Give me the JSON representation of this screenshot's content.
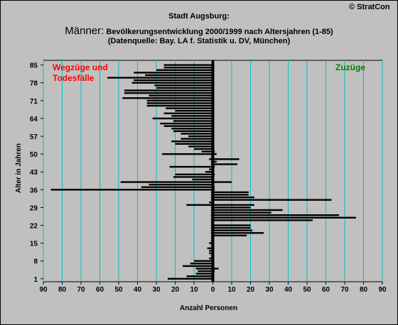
{
  "header": {
    "copyright": "© StratCon",
    "title": "Stadt Augsburg:",
    "subtitle_big": "Männer:",
    "subtitle_rest": " Bevölkerungsentwicklung  2000/1999  nach Altersjahren (1-85)",
    "subtitle2": "(Datenquelle: Bay. LA f. Statistik u. DV, München)"
  },
  "colors": {
    "background": "#c0c0c0",
    "grid": "#00c0c0",
    "bar": "#000000",
    "left_label": "#ff0000",
    "right_label": "#008000"
  },
  "chart_data": {
    "type": "bar",
    "orientation": "horizontal",
    "title": "",
    "xlabel": "Anzahl Personen",
    "ylabel": "Alter in Jahren",
    "xlim": [
      -90,
      90
    ],
    "ylim": [
      1,
      85
    ],
    "x_ticks": [
      -90,
      -80,
      -70,
      -60,
      -50,
      -40,
      -30,
      -20,
      -10,
      0,
      10,
      20,
      30,
      40,
      50,
      60,
      70,
      80,
      90
    ],
    "x_tick_labels": [
      "90",
      "80",
      "70",
      "60",
      "50",
      "40",
      "30",
      "20",
      "10",
      "0",
      "10",
      "20",
      "30",
      "40",
      "50",
      "60",
      "70",
      "80",
      "90"
    ],
    "y_ticks": [
      1,
      8,
      15,
      22,
      29,
      36,
      43,
      50,
      57,
      64,
      71,
      78,
      85
    ],
    "y_tick_labels": [
      "1",
      "8",
      "15",
      "22",
      "29",
      "36",
      "43",
      "50",
      "57",
      "64",
      "71",
      "78",
      "85"
    ],
    "grid": true,
    "annotations": {
      "left": [
        "Wegzüge und",
        "Todesfälle"
      ],
      "right": "Zuzüge"
    },
    "ages": [
      1,
      2,
      3,
      4,
      5,
      6,
      7,
      8,
      9,
      10,
      11,
      12,
      13,
      14,
      15,
      16,
      17,
      18,
      19,
      20,
      21,
      22,
      23,
      24,
      25,
      26,
      27,
      28,
      29,
      30,
      31,
      32,
      33,
      34,
      35,
      36,
      37,
      38,
      39,
      40,
      41,
      42,
      43,
      44,
      45,
      46,
      47,
      48,
      49,
      50,
      51,
      52,
      53,
      54,
      55,
      56,
      57,
      58,
      59,
      60,
      61,
      62,
      63,
      64,
      65,
      66,
      67,
      68,
      69,
      70,
      71,
      72,
      73,
      74,
      75,
      76,
      77,
      78,
      79,
      80,
      81,
      82,
      83,
      84,
      85
    ],
    "series": [
      {
        "name": "Wegzüge und Todesfälle",
        "values": [
          -24,
          -14,
          -9,
          -8,
          -9,
          -16,
          -12,
          -10,
          -2,
          -1,
          -2,
          -2,
          -3,
          -1,
          -2,
          -1,
          -1,
          -1,
          -1,
          -1,
          -1,
          -1,
          -1,
          -1,
          -1,
          -1,
          -1,
          -1,
          -1,
          -14,
          -2,
          -1,
          -1,
          -1,
          -1,
          -86,
          -38,
          -34,
          -49,
          -11,
          -21,
          -20,
          -4,
          -2,
          -23,
          -1,
          -1,
          -2,
          -1,
          -27,
          -6,
          -10,
          -13,
          -20,
          -22,
          -17,
          -13,
          -17,
          -21,
          -22,
          -26,
          -28,
          -21,
          -32,
          -22,
          -26,
          -20,
          -25,
          -35,
          -35,
          -35,
          -48,
          -34,
          -47,
          -47,
          -30,
          -31,
          -43,
          -42,
          -56,
          -36,
          -42,
          -30,
          -26,
          -26
        ]
      },
      {
        "name": "Zuzüge",
        "values": [
          0,
          0,
          0,
          1,
          3,
          0,
          0,
          0,
          0,
          0,
          0,
          0,
          0,
          0,
          0,
          0,
          0,
          18,
          27,
          21,
          20,
          20,
          0,
          53,
          76,
          67,
          31,
          37,
          20,
          22,
          0,
          63,
          22,
          19,
          19,
          1,
          1,
          0,
          10,
          0,
          0,
          1,
          0,
          0,
          1,
          13,
          2,
          14,
          0,
          2,
          1,
          0,
          0,
          0,
          0,
          0,
          0,
          0,
          0,
          0,
          0,
          0,
          0,
          0,
          0,
          0,
          0,
          0,
          0,
          0,
          0,
          0,
          0,
          0,
          0,
          0,
          0,
          0,
          0,
          0,
          0,
          0,
          0,
          0,
          0
        ]
      }
    ]
  }
}
